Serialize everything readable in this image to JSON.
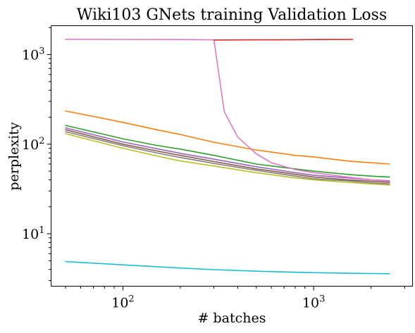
{
  "chart_data": {
    "type": "line",
    "title": "Wiki103 GNets training Validation Loss",
    "xlabel": "# batches",
    "ylabel": "perplexity",
    "xscale": "log",
    "yscale": "log",
    "xlim": [
      42,
      3300
    ],
    "ylim": [
      2.6,
      2100
    ],
    "xticks": [
      {
        "value": 100,
        "base": "10",
        "exp": "2"
      },
      {
        "value": 1000,
        "base": "10",
        "exp": "3"
      }
    ],
    "yticks": [
      {
        "value": 10,
        "base": "10",
        "exp": "1"
      },
      {
        "value": 100,
        "base": "10",
        "exp": "2"
      },
      {
        "value": 1000,
        "base": "10",
        "exp": "3"
      }
    ],
    "grid": false,
    "legend": "none",
    "series": [
      {
        "color": "#ff7f0e",
        "x": [
          50,
          100,
          150,
          200,
          300,
          500,
          800,
          1000,
          1500,
          2000,
          2500
        ],
        "y": [
          235,
          175,
          145,
          128,
          105,
          86,
          75,
          72,
          65,
          62,
          60
        ]
      },
      {
        "color": "#2ca02c",
        "x": [
          50,
          100,
          150,
          200,
          300,
          500,
          800,
          1000,
          1500,
          2000,
          2500
        ],
        "y": [
          162,
          115,
          97,
          88,
          75,
          60,
          53,
          50,
          46,
          44,
          43
        ]
      },
      {
        "color": "#9467bd",
        "x": [
          50,
          100,
          150,
          200,
          300,
          500,
          800,
          1000,
          1500,
          2000,
          2500
        ],
        "y": [
          152,
          106,
          89,
          79,
          68,
          56,
          48,
          45,
          42,
          40,
          39
        ]
      },
      {
        "color": "#8c564b",
        "x": [
          50,
          100,
          150,
          200,
          300,
          500,
          800,
          1000,
          1500,
          2000,
          2500
        ],
        "y": [
          145,
          100,
          84,
          75,
          64,
          53,
          46,
          43,
          40,
          38.5,
          37.5
        ]
      },
      {
        "color": "#e377c2",
        "x": [
          50,
          100,
          200,
          300,
          340,
          400,
          500,
          600,
          800,
          1000,
          1500,
          2000,
          2500
        ],
        "y": [
          1480,
          1475,
          1470,
          1460,
          230,
          120,
          78,
          62,
          52,
          48,
          43,
          40,
          38.5
        ]
      },
      {
        "color": "#7f7f7f",
        "x": [
          50,
          100,
          150,
          200,
          300,
          500,
          800,
          1000,
          1500,
          2000,
          2500
        ],
        "y": [
          138,
          96,
          80,
          71,
          61,
          51,
          44,
          41,
          39,
          37,
          36
        ]
      },
      {
        "color": "#bcbd22",
        "x": [
          50,
          100,
          150,
          200,
          300,
          500,
          800,
          1000,
          1500,
          2000,
          2500
        ],
        "y": [
          131,
          90,
          74,
          65,
          57,
          48,
          42,
          40,
          37.5,
          36,
          35
        ]
      },
      {
        "color": "#d62728",
        "x": [
          300,
          500,
          800,
          1000,
          1300,
          1600
        ],
        "y": [
          1455,
          1460,
          1465,
          1470,
          1472,
          1475
        ]
      },
      {
        "color": "#17becf",
        "x": [
          50,
          100,
          200,
          300,
          500,
          800,
          1000,
          1500,
          2000,
          2500
        ],
        "y": [
          4.9,
          4.5,
          4.15,
          3.98,
          3.82,
          3.72,
          3.68,
          3.63,
          3.6,
          3.58
        ]
      }
    ]
  }
}
